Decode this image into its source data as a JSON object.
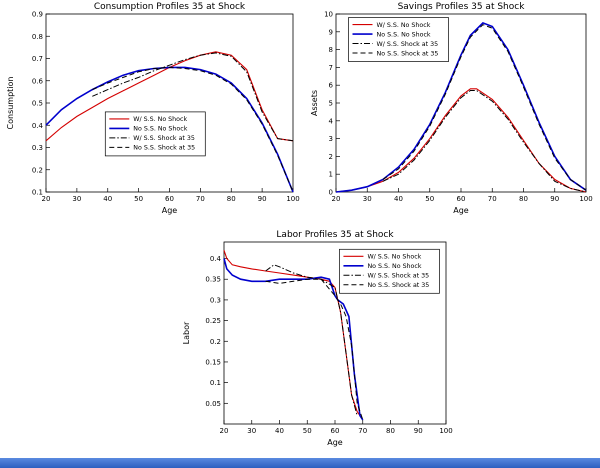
{
  "page": {
    "background": "#ffffff",
    "accent_red": "#d40000",
    "accent_blue": "#0000cd",
    "bottom_bar_color": "#2d5fbf"
  },
  "chart_data": [
    {
      "type": "line",
      "title": "Consumption Profiles 35 at Shock",
      "xlabel": "Age",
      "ylabel": "Consumption",
      "xlim": [
        20,
        100
      ],
      "ylim": [
        0.1,
        0.9
      ],
      "xticks": [
        20,
        30,
        40,
        50,
        60,
        70,
        80,
        90,
        100
      ],
      "yticks": [
        0.1,
        0.2,
        0.3,
        0.4,
        0.5,
        0.6,
        0.7,
        0.8,
        0.9
      ],
      "grid": false,
      "legend_pos": {
        "x": 0.24,
        "y": 0.55
      },
      "series": [
        {
          "name": "W/ S.S. No Shock",
          "color": "#d40000",
          "style": "solid",
          "width": 1.1,
          "x": [
            20,
            25,
            30,
            35,
            40,
            45,
            50,
            55,
            60,
            65,
            70,
            75,
            80,
            85,
            90,
            95,
            100
          ],
          "y": [
            0.33,
            0.39,
            0.44,
            0.48,
            0.52,
            0.555,
            0.59,
            0.625,
            0.66,
            0.69,
            0.715,
            0.73,
            0.715,
            0.65,
            0.47,
            0.34,
            0.33
          ]
        },
        {
          "name": "No S.S. No Shock",
          "color": "#0000cd",
          "style": "solid",
          "width": 1.6,
          "x": [
            20,
            25,
            30,
            35,
            40,
            45,
            50,
            55,
            60,
            65,
            70,
            75,
            80,
            85,
            90,
            95,
            100
          ],
          "y": [
            0.4,
            0.47,
            0.52,
            0.56,
            0.595,
            0.625,
            0.645,
            0.655,
            0.66,
            0.66,
            0.65,
            0.63,
            0.59,
            0.52,
            0.41,
            0.27,
            0.1
          ]
        },
        {
          "name": "W/ S.S. Shock at 35",
          "color": "#000000",
          "style": "dashdot",
          "width": 1,
          "x": [
            35,
            40,
            45,
            50,
            55,
            60,
            65,
            70,
            75,
            80,
            85,
            90,
            95,
            100
          ],
          "y": [
            0.53,
            0.56,
            0.59,
            0.615,
            0.645,
            0.67,
            0.695,
            0.715,
            0.725,
            0.71,
            0.64,
            0.46,
            0.34,
            0.33
          ]
        },
        {
          "name": "No S.S. Shock at 35",
          "color": "#000000",
          "style": "dashed",
          "width": 1,
          "x": [
            35,
            40,
            45,
            50,
            55,
            60,
            65,
            70,
            75,
            80,
            85,
            90,
            95,
            100
          ],
          "y": [
            0.56,
            0.59,
            0.615,
            0.64,
            0.655,
            0.66,
            0.655,
            0.645,
            0.625,
            0.585,
            0.515,
            0.405,
            0.265,
            0.1
          ]
        }
      ]
    },
    {
      "type": "line",
      "title": "Savings Profiles 35 at Shock",
      "xlabel": "Age",
      "ylabel": "Assets",
      "xlim": [
        20,
        100
      ],
      "ylim": [
        0,
        10
      ],
      "xticks": [
        20,
        30,
        40,
        50,
        60,
        70,
        80,
        90,
        100
      ],
      "yticks": [
        0,
        1,
        2,
        3,
        4,
        5,
        6,
        7,
        8,
        9,
        10
      ],
      "grid": false,
      "legend_pos": {
        "x": 0.05,
        "y": 0.02
      },
      "series": [
        {
          "name": "W/ S.S. No Shock",
          "color": "#d40000",
          "style": "solid",
          "width": 1.1,
          "x": [
            20,
            25,
            30,
            35,
            40,
            45,
            50,
            55,
            60,
            63,
            65,
            70,
            75,
            80,
            85,
            90,
            95,
            100
          ],
          "y": [
            0,
            0.1,
            0.3,
            0.6,
            1.1,
            1.9,
            3.0,
            4.3,
            5.4,
            5.8,
            5.8,
            5.2,
            4.2,
            2.9,
            1.6,
            0.7,
            0.2,
            0
          ]
        },
        {
          "name": "No S.S. No Shock",
          "color": "#0000cd",
          "style": "solid",
          "width": 1.6,
          "x": [
            20,
            25,
            30,
            35,
            40,
            45,
            50,
            55,
            60,
            63,
            67,
            70,
            75,
            80,
            85,
            90,
            95,
            100
          ],
          "y": [
            0,
            0.1,
            0.3,
            0.7,
            1.4,
            2.4,
            3.8,
            5.6,
            7.7,
            8.8,
            9.5,
            9.3,
            8.0,
            6.0,
            3.9,
            2.0,
            0.7,
            0.1
          ]
        },
        {
          "name": "W/ S.S. Shock at 35",
          "color": "#000000",
          "style": "dashdot",
          "width": 1,
          "x": [
            35,
            40,
            45,
            50,
            55,
            60,
            63,
            65,
            70,
            75,
            80,
            85,
            90,
            95,
            100
          ],
          "y": [
            0.6,
            1.0,
            1.8,
            2.9,
            4.2,
            5.3,
            5.7,
            5.7,
            5.1,
            4.1,
            2.8,
            1.6,
            0.6,
            0.2,
            0
          ]
        },
        {
          "name": "No S.S. Shock at 35",
          "color": "#000000",
          "style": "dashed",
          "width": 1,
          "x": [
            35,
            40,
            45,
            50,
            55,
            60,
            63,
            67,
            70,
            75,
            80,
            85,
            90,
            95,
            100
          ],
          "y": [
            0.7,
            1.3,
            2.3,
            3.7,
            5.5,
            7.6,
            8.7,
            9.4,
            9.2,
            7.9,
            5.9,
            3.8,
            1.9,
            0.7,
            0.1
          ]
        }
      ]
    },
    {
      "type": "line",
      "title": "Labor Profiles 35 at Shock",
      "xlabel": "Age",
      "ylabel": "Labor",
      "xlim": [
        20,
        100
      ],
      "ylim": [
        0,
        0.44
      ],
      "xticks": [
        20,
        30,
        40,
        50,
        60,
        70,
        80,
        90,
        100
      ],
      "yticks": [
        0.05,
        0.1,
        0.15,
        0.2,
        0.25,
        0.3,
        0.35,
        0.4
      ],
      "grid": false,
      "legend_pos": {
        "x": 0.52,
        "y": 0.04
      },
      "series": [
        {
          "name": "W/ S.S. No Shock",
          "color": "#d40000",
          "style": "solid",
          "width": 1.1,
          "x": [
            20,
            21,
            23,
            26,
            30,
            35,
            40,
            45,
            50,
            55,
            58,
            60,
            62,
            64,
            66,
            68,
            69
          ],
          "y": [
            0.42,
            0.4,
            0.385,
            0.38,
            0.375,
            0.37,
            0.365,
            0.36,
            0.355,
            0.35,
            0.345,
            0.33,
            0.27,
            0.17,
            0.07,
            0.03,
            0.02
          ]
        },
        {
          "name": "No S.S. No Shock",
          "color": "#0000cd",
          "style": "solid",
          "width": 1.6,
          "x": [
            20,
            21,
            23,
            26,
            30,
            35,
            40,
            45,
            50,
            55,
            58,
            60,
            61,
            63,
            65,
            67,
            69,
            70
          ],
          "y": [
            0.4,
            0.375,
            0.36,
            0.35,
            0.345,
            0.345,
            0.35,
            0.35,
            0.35,
            0.355,
            0.35,
            0.31,
            0.3,
            0.29,
            0.26,
            0.12,
            0.02,
            0.01
          ]
        },
        {
          "name": "W/ S.S. Shock at 35",
          "color": "#000000",
          "style": "dashdot",
          "width": 1,
          "x": [
            35,
            38,
            40,
            45,
            50,
            55,
            60,
            62,
            64,
            66,
            68
          ],
          "y": [
            0.37,
            0.385,
            0.38,
            0.365,
            0.355,
            0.35,
            0.33,
            0.27,
            0.17,
            0.07,
            0.02
          ]
        },
        {
          "name": "No S.S. Shock at 35",
          "color": "#000000",
          "style": "dashed",
          "width": 1,
          "x": [
            35,
            40,
            45,
            50,
            55,
            60,
            62,
            64,
            66,
            68,
            70
          ],
          "y": [
            0.345,
            0.34,
            0.345,
            0.35,
            0.35,
            0.31,
            0.29,
            0.26,
            0.19,
            0.05,
            0.01
          ]
        }
      ]
    }
  ]
}
